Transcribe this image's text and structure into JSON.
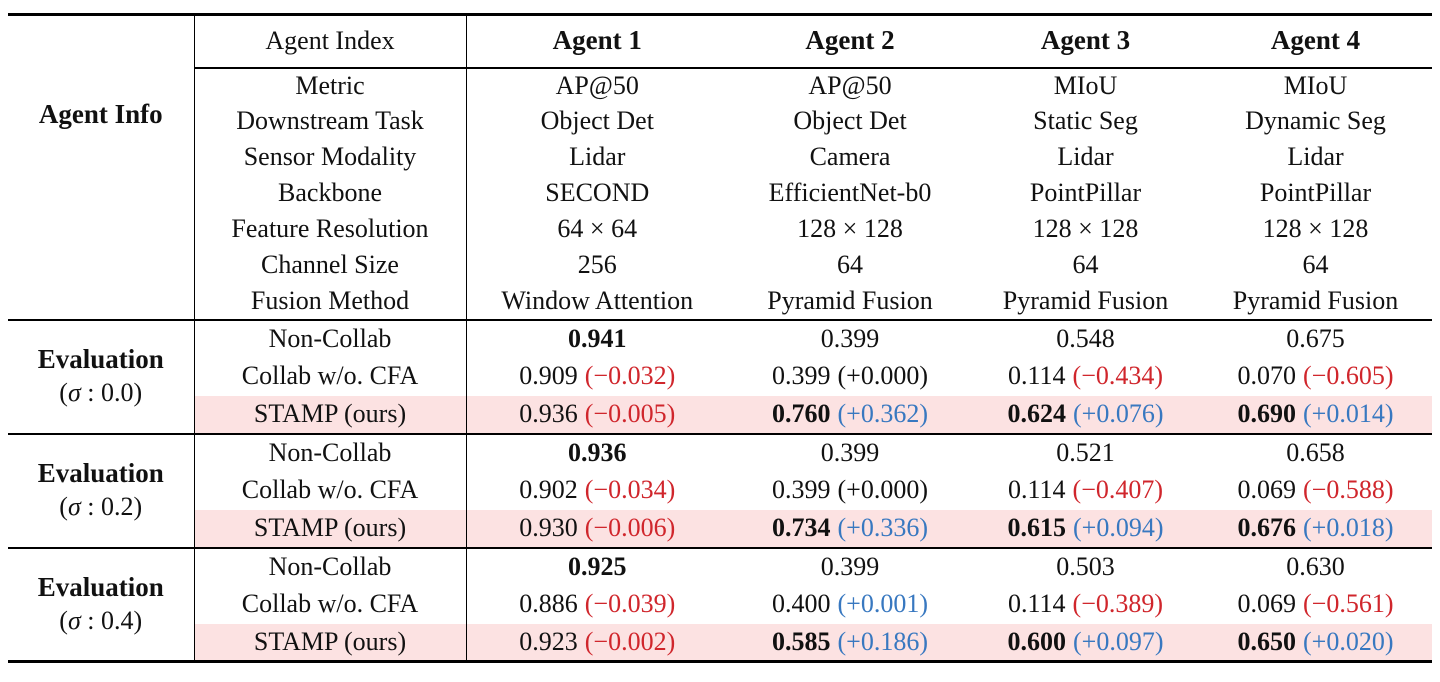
{
  "colors": {
    "positive_delta_blue": "#3878c0",
    "negative_delta_red": "#d0262c",
    "highlight_row_pink": "#fce2e2",
    "rule_black": "#000000"
  },
  "header": {
    "index_label": "Agent Index",
    "agents": [
      "Agent 1",
      "Agent 2",
      "Agent 3",
      "Agent 4"
    ]
  },
  "agent_info": {
    "group_label": "Agent Info",
    "rows": [
      {
        "label": "Metric",
        "values": [
          "AP@50",
          "AP@50",
          "MIoU",
          "MIoU"
        ]
      },
      {
        "label": "Downstream Task",
        "values": [
          "Object Det",
          "Object Det",
          "Static Seg",
          "Dynamic Seg"
        ]
      },
      {
        "label": "Sensor Modality",
        "values": [
          "Lidar",
          "Camera",
          "Lidar",
          "Lidar"
        ]
      },
      {
        "label": "Backbone",
        "values": [
          "SECOND",
          "EfficientNet-b0",
          "PointPillar",
          "PointPillar"
        ]
      },
      {
        "label": "Feature Resolution",
        "values": [
          "64 × 64",
          "128 × 128",
          "128 × 128",
          "128 × 128"
        ]
      },
      {
        "label": "Channel Size",
        "values": [
          "256",
          "64",
          "64",
          "64"
        ]
      },
      {
        "label": "Fusion Method",
        "values": [
          "Window Attention",
          "Pyramid Fusion",
          "Pyramid Fusion",
          "Pyramid Fusion"
        ]
      }
    ]
  },
  "evaluations": [
    {
      "group_label": "Evaluation",
      "sigma_prefix": "(",
      "sigma_symbol": "σ",
      "sigma_suffix": " : 0.0)",
      "rows": [
        {
          "label": "Non-Collab",
          "cells": [
            {
              "value": "0.941",
              "delta": ""
            },
            {
              "value": "0.399",
              "delta": ""
            },
            {
              "value": "0.548",
              "delta": ""
            },
            {
              "value": "0.675",
              "delta": ""
            }
          ]
        },
        {
          "label": "Collab w/o. CFA",
          "cells": [
            {
              "value": "0.909",
              "delta": "(−0.032)"
            },
            {
              "value": "0.399",
              "delta": "(+0.000)"
            },
            {
              "value": "0.114",
              "delta": "(−0.434)"
            },
            {
              "value": "0.070",
              "delta": "(−0.605)"
            }
          ]
        },
        {
          "label": "STAMP (ours)",
          "cells": [
            {
              "value": "0.936",
              "delta": "(−0.005)"
            },
            {
              "value": "0.760",
              "delta": "(+0.362)"
            },
            {
              "value": "0.624",
              "delta": "(+0.076)"
            },
            {
              "value": "0.690",
              "delta": "(+0.014)"
            }
          ]
        }
      ]
    },
    {
      "group_label": "Evaluation",
      "sigma_prefix": "(",
      "sigma_symbol": "σ",
      "sigma_suffix": " : 0.2)",
      "rows": [
        {
          "label": "Non-Collab",
          "cells": [
            {
              "value": "0.936",
              "delta": ""
            },
            {
              "value": "0.399",
              "delta": ""
            },
            {
              "value": "0.521",
              "delta": ""
            },
            {
              "value": "0.658",
              "delta": ""
            }
          ]
        },
        {
          "label": "Collab w/o. CFA",
          "cells": [
            {
              "value": "0.902",
              "delta": "(−0.034)"
            },
            {
              "value": "0.399",
              "delta": "(+0.000)"
            },
            {
              "value": "0.114",
              "delta": "(−0.407)"
            },
            {
              "value": "0.069",
              "delta": "(−0.588)"
            }
          ]
        },
        {
          "label": "STAMP (ours)",
          "cells": [
            {
              "value": "0.930",
              "delta": "(−0.006)"
            },
            {
              "value": "0.734",
              "delta": "(+0.336)"
            },
            {
              "value": "0.615",
              "delta": "(+0.094)"
            },
            {
              "value": "0.676",
              "delta": "(+0.018)"
            }
          ]
        }
      ]
    },
    {
      "group_label": "Evaluation",
      "sigma_prefix": "(",
      "sigma_symbol": "σ",
      "sigma_suffix": " : 0.4)",
      "rows": [
        {
          "label": "Non-Collab",
          "cells": [
            {
              "value": "0.925",
              "delta": ""
            },
            {
              "value": "0.399",
              "delta": ""
            },
            {
              "value": "0.503",
              "delta": ""
            },
            {
              "value": "0.630",
              "delta": ""
            }
          ]
        },
        {
          "label": "Collab w/o. CFA",
          "cells": [
            {
              "value": "0.886",
              "delta": "(−0.039)"
            },
            {
              "value": "0.400",
              "delta": "(+0.001)"
            },
            {
              "value": "0.114",
              "delta": "(−0.389)"
            },
            {
              "value": "0.069",
              "delta": "(−0.561)"
            }
          ]
        },
        {
          "label": "STAMP (ours)",
          "cells": [
            {
              "value": "0.923",
              "delta": "(−0.002)"
            },
            {
              "value": "0.585",
              "delta": "(+0.186)"
            },
            {
              "value": "0.600",
              "delta": "(+0.097)"
            },
            {
              "value": "0.650",
              "delta": "(+0.020)"
            }
          ]
        }
      ]
    }
  ]
}
